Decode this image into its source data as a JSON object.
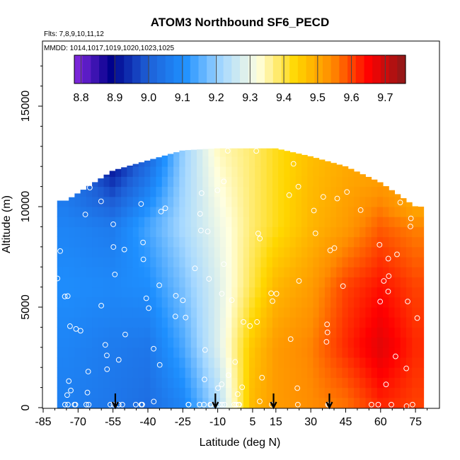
{
  "chart_data": {
    "type": "heatmap",
    "title": "ATOM3 Northbound SF6_PECD",
    "flights_label": "Flts: 7,8,9,10,11,12",
    "mmdd_label": "MMDD: 1014,1017,1019,1020,1023,1025",
    "xlabel": "Latitude (deg N)",
    "ylabel": "Altitude (m)",
    "xlim": [
      -85,
      85
    ],
    "ylim": [
      0,
      17500
    ],
    "xticks": [
      -85,
      -70,
      -55,
      -40,
      -25,
      -10,
      5,
      15,
      30,
      45,
      60,
      75
    ],
    "yticks": [
      0,
      5000,
      10000,
      15000
    ],
    "colorbar": {
      "range": [
        8.78,
        9.76
      ],
      "ticks": [
        8.8,
        8.9,
        9.0,
        9.1,
        9.2,
        9.3,
        9.4,
        9.5,
        9.6,
        9.7
      ],
      "colors": [
        "#8a2be2",
        "#00008b",
        "#1e5fd6",
        "#1e90ff",
        "#a6d8ff",
        "#ffffe0",
        "#ffd700",
        "#ff8c00",
        "#ff0000",
        "#8b1a1a"
      ]
    },
    "arrow_latitudes": [
      -54,
      -11,
      14,
      38
    ],
    "grid": false,
    "legend": "none",
    "sample_profiles": [
      {
        "lat": -75,
        "alt": [
          0,
          3000,
          6000,
          9000,
          10300
        ],
        "values": [
          9.07,
          9.08,
          9.1,
          9.08,
          9.06
        ]
      },
      {
        "lat": -55,
        "alt": [
          0,
          3000,
          6000,
          9000,
          11800
        ],
        "values": [
          9.05,
          9.06,
          9.09,
          9.06,
          8.92
        ]
      },
      {
        "lat": -40,
        "alt": [
          0,
          3000,
          6000,
          9000,
          12300
        ],
        "values": [
          9.03,
          9.05,
          9.1,
          9.14,
          9.02
        ]
      },
      {
        "lat": -25,
        "alt": [
          0,
          3000,
          6000,
          9000,
          12800
        ],
        "values": [
          9.08,
          9.14,
          9.18,
          9.22,
          9.2
        ]
      },
      {
        "lat": -10,
        "alt": [
          0,
          3000,
          6000,
          9000,
          12900
        ],
        "values": [
          9.22,
          9.28,
          9.28,
          9.3,
          9.34
        ]
      },
      {
        "lat": 5,
        "alt": [
          0,
          3000,
          6000,
          9000,
          12900
        ],
        "values": [
          9.48,
          9.46,
          9.4,
          9.38,
          9.38
        ]
      },
      {
        "lat": 15,
        "alt": [
          0,
          3000,
          6000,
          9000,
          12900
        ],
        "values": [
          9.52,
          9.52,
          9.48,
          9.42,
          9.42
        ]
      },
      {
        "lat": 30,
        "alt": [
          0,
          3000,
          6000,
          9000,
          12500
        ],
        "values": [
          9.54,
          9.55,
          9.52,
          9.48,
          9.47
        ]
      },
      {
        "lat": 45,
        "alt": [
          0,
          3000,
          6000,
          9000,
          12000
        ],
        "values": [
          9.56,
          9.62,
          9.6,
          9.52,
          9.5
        ]
      },
      {
        "lat": 60,
        "alt": [
          0,
          3000,
          6000,
          9000,
          11200
        ],
        "values": [
          9.62,
          9.68,
          9.64,
          9.58,
          9.52
        ]
      },
      {
        "lat": 75,
        "alt": [
          0,
          3000,
          6000,
          9000,
          10000
        ],
        "values": [
          9.6,
          9.62,
          9.6,
          9.55,
          9.5
        ]
      }
    ]
  }
}
